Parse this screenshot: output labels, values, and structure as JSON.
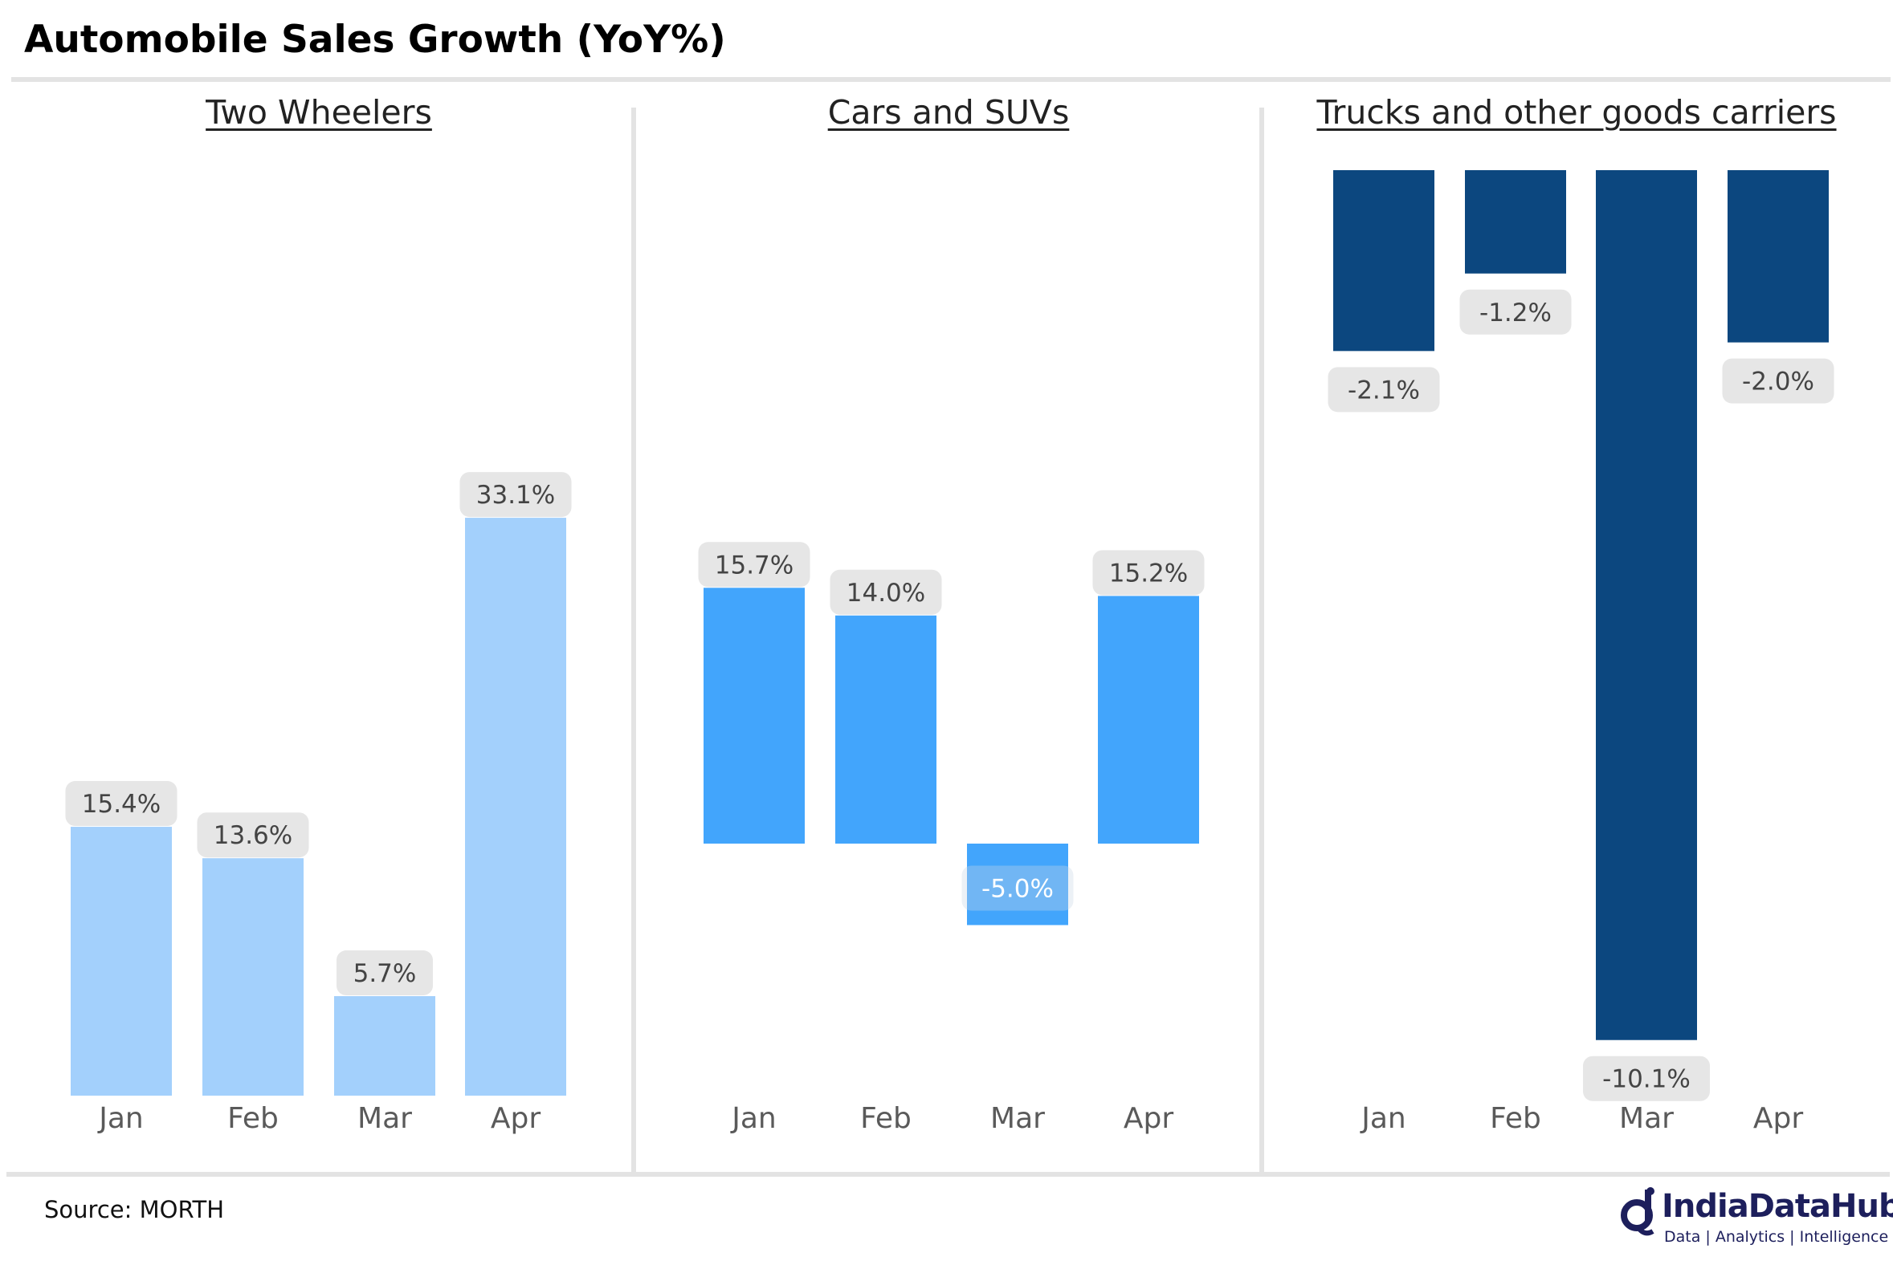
{
  "title": "Automobile Sales Growth (YoY%)",
  "source": "Source: MORTH",
  "logo": {
    "name": "IndiaDataHub",
    "tagline": "Data | Analytics | Intelligence"
  },
  "colors": {
    "two_wheelers": "#a3d0fc",
    "cars": "#42a5fc",
    "trucks": "#0c477f",
    "label_bg": "#e6e6e6",
    "label_text": "#444444"
  },
  "chart_data": [
    {
      "type": "bar",
      "title": "Two Wheelers",
      "categories": [
        "Jan",
        "Feb",
        "Mar",
        "Apr"
      ],
      "values": [
        15.4,
        13.6,
        5.7,
        33.1
      ],
      "labels": [
        "15.4%",
        "13.6%",
        "5.7%",
        "33.1%"
      ],
      "color": "#a3d0fc"
    },
    {
      "type": "bar",
      "title": "Cars and SUVs",
      "categories": [
        "Jan",
        "Feb",
        "Mar",
        "Apr"
      ],
      "values": [
        15.7,
        14.0,
        -5.0,
        15.2
      ],
      "labels": [
        "15.7%",
        "14.0%",
        "-5.0%",
        "15.2%"
      ],
      "color": "#42a5fc"
    },
    {
      "type": "bar",
      "title": "Trucks and other goods carriers",
      "categories": [
        "Jan",
        "Feb",
        "Mar",
        "Apr"
      ],
      "values": [
        -2.1,
        -1.2,
        -10.1,
        -2.0
      ],
      "labels": [
        "-2.1%",
        "-1.2%",
        "-10.1%",
        "-2.0%"
      ],
      "color": "#0c477f"
    }
  ]
}
